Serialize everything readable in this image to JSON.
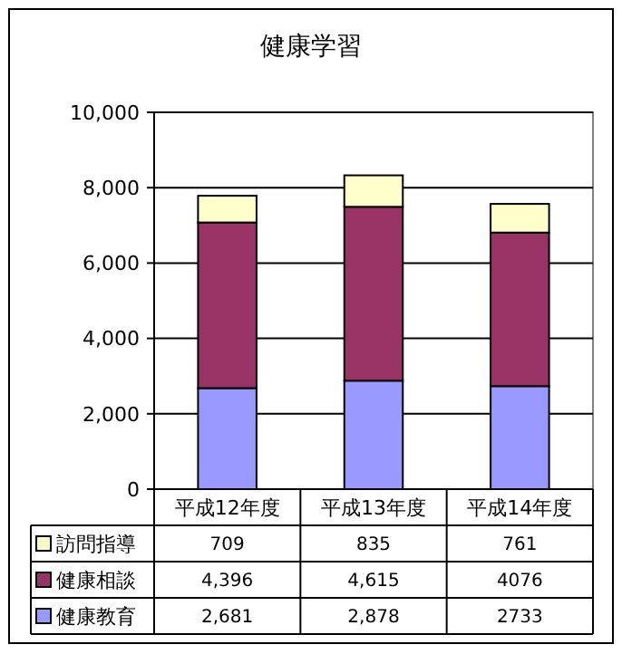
{
  "chart_data": {
    "type": "bar",
    "title": "健康学習",
    "categories": [
      "平成12年度",
      "平成13年度",
      "平成14年度"
    ],
    "stacked": true,
    "series": [
      {
        "name": "健康教育",
        "color": "#9999ff",
        "values": [
          2681,
          2878,
          2733
        ],
        "value_labels": [
          "2,681",
          "2,878",
          "2733"
        ]
      },
      {
        "name": "健康相談",
        "color": "#993366",
        "values": [
          4396,
          4615,
          4076
        ],
        "value_labels": [
          "4,396",
          "4,615",
          "4076"
        ]
      },
      {
        "name": "訪問指導",
        "color": "#ffffcc",
        "values": [
          709,
          835,
          761
        ],
        "value_labels": [
          "709",
          "835",
          "761"
        ]
      }
    ],
    "ylim": [
      0,
      10000
    ],
    "yticks": [
      {
        "value": 0,
        "label": "0"
      },
      {
        "value": 2000,
        "label": "2,000"
      },
      {
        "value": 4000,
        "label": "4,000"
      },
      {
        "value": 6000,
        "label": "6,000"
      },
      {
        "value": 8000,
        "label": "8,000"
      },
      {
        "value": 10000,
        "label": "10,000"
      }
    ],
    "grid": "y",
    "legend": "bottom"
  }
}
